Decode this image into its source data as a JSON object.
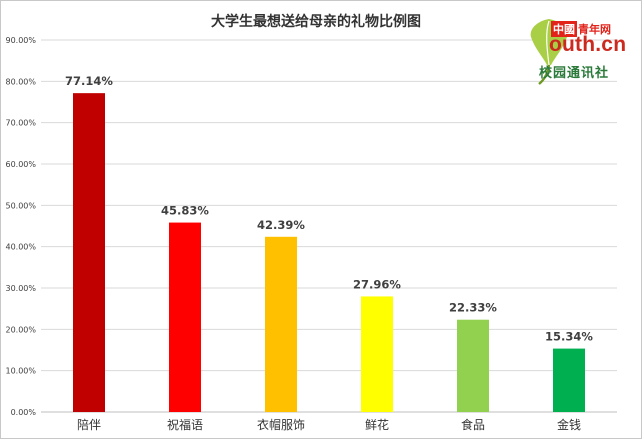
{
  "chart_data": {
    "type": "bar",
    "title": "大学生最想送给母亲的礼物比例图",
    "xlabel": "",
    "ylabel": "",
    "categories": [
      "陪伴",
      "祝福语",
      "衣帽服饰",
      "鲜花",
      "食品",
      "金钱"
    ],
    "values": [
      77.14,
      45.83,
      42.39,
      27.96,
      22.33,
      15.34
    ],
    "data_labels": [
      "77.14%",
      "45.83%",
      "42.39%",
      "27.96%",
      "22.33%",
      "15.34%"
    ],
    "bar_colors": [
      "#c00000",
      "#ff0000",
      "#ffc000",
      "#ffff00",
      "#92d050",
      "#00b050"
    ],
    "ylim": [
      0,
      90
    ],
    "yticks": [
      0,
      10,
      20,
      30,
      40,
      50,
      60,
      70,
      80,
      90
    ],
    "ytick_labels": [
      "0.00%",
      "10.00%",
      "20.00%",
      "30.00%",
      "40.00%",
      "50.00%",
      "60.00%",
      "70.00%",
      "80.00%",
      "90.00%"
    ],
    "grid": true,
    "legend": "none"
  },
  "logo": {
    "china_text": "中國",
    "youth_text": "青年网",
    "domain_text": "outh.cn",
    "campus_text": "校园通讯社",
    "icon": "ginkgo-leaf-icon",
    "colors": {
      "red": "#e2231a",
      "green": "#2a7a3a",
      "leaf": "#9bc53d"
    }
  }
}
